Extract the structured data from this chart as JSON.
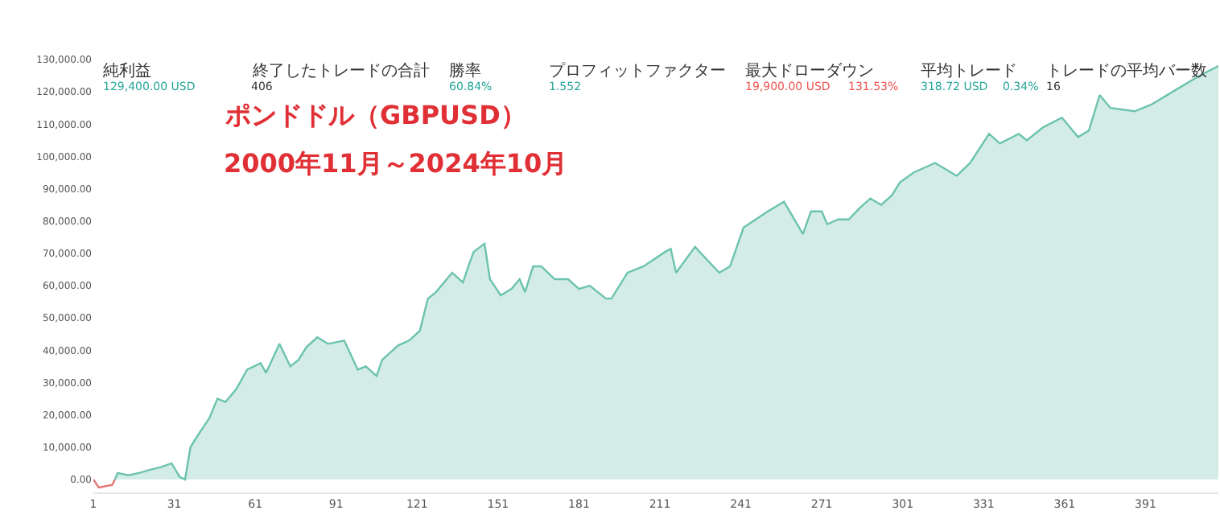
{
  "chart_data": {
    "type": "area",
    "title": "ポンドドル（GBPUSD）",
    "subtitle": "2000年11月～2024年10月",
    "annotations": [
      "純利益",
      "129,400.00 USD",
      "終了したトレードの合計",
      "406",
      "勝率",
      "60.84%",
      "プロフィットファクター",
      "1.552",
      "最大ドローダウン",
      "19,900.00 USD",
      "131.53%",
      "平均トレード",
      "318.72 USD",
      "0.34%",
      "トレードの平均バー数",
      "16"
    ],
    "series": [
      {
        "type": "line",
        "color": "#e57373",
        "x": [
          1,
          3,
          8,
          9
        ],
        "values": [
          0,
          -2500,
          -1700,
          0
        ]
      },
      {
        "color": "#6cc3ad",
        "x": [
          9,
          10,
          14,
          18,
          22,
          26,
          30,
          33,
          35,
          37,
          40,
          44,
          47,
          50,
          54,
          58,
          63,
          65,
          70,
          74,
          77,
          80,
          84,
          88,
          94,
          99,
          102,
          106,
          108,
          114,
          118,
          122,
          125,
          128,
          134,
          138,
          140,
          142,
          146,
          148,
          152,
          156,
          159,
          161,
          164,
          167,
          172,
          177,
          181,
          185,
          191,
          193,
          199,
          205,
          213,
          215,
          217,
          224,
          233,
          237,
          242,
          251,
          257,
          264,
          267,
          271,
          273,
          277,
          281,
          285,
          289,
          293,
          297,
          300,
          305,
          313,
          321,
          326,
          333,
          337,
          344,
          347,
          353,
          360,
          366,
          370,
          374,
          378,
          387,
          393,
          403,
          411,
          418
        ],
        "values": [
          0,
          2000,
          1300,
          2000,
          3000,
          3800,
          5000,
          800,
          0,
          10000,
          14000,
          19000,
          25000,
          24000,
          28000,
          34000,
          36000,
          33000,
          42000,
          35000,
          37000,
          41000,
          44000,
          42000,
          43000,
          34000,
          35000,
          32000,
          37000,
          41500,
          43000,
          46000,
          56000,
          58000,
          64000,
          61000,
          66000,
          70500,
          73000,
          62000,
          57000,
          59000,
          62000,
          58000,
          66000,
          66000,
          62000,
          62000,
          59000,
          60000,
          56000,
          56000,
          64000,
          66000,
          70500,
          71400,
          64000,
          72000,
          64000,
          66000,
          78000,
          83000,
          86000,
          76000,
          83000,
          83000,
          79000,
          80500,
          80500,
          84000,
          87000,
          85000,
          88000,
          92000,
          95000,
          98000,
          94000,
          98000,
          107000,
          104000,
          107000,
          105000,
          109000,
          112000,
          106000,
          108000,
          119000,
          115000,
          114000,
          116000,
          121000,
          125000,
          128000
        ]
      }
    ],
    "xlim": [
      1,
      418
    ],
    "xticks": [
      1,
      31,
      61,
      91,
      121,
      151,
      181,
      211,
      241,
      271,
      301,
      331,
      361,
      391
    ],
    "ylim": [
      -4000,
      130000
    ],
    "yticks": [
      {
        "value": 0,
        "label": "0.00"
      },
      {
        "value": 10000,
        "label": "10,000.00"
      },
      {
        "value": 20000,
        "label": "20,000.00"
      },
      {
        "value": 30000,
        "label": "30,000.00"
      },
      {
        "value": 40000,
        "label": "40,000.00"
      },
      {
        "value": 50000,
        "label": "50,000.00"
      },
      {
        "value": 60000,
        "label": "60,000.00"
      },
      {
        "value": 70000,
        "label": "70,000.00"
      },
      {
        "value": 80000,
        "label": "80,000.00"
      },
      {
        "value": 90000,
        "label": "90,000.00"
      },
      {
        "value": 100000,
        "label": "100,000.00"
      },
      {
        "value": 110000,
        "label": "110,000.00"
      },
      {
        "value": 120000,
        "label": "120,000.00"
      },
      {
        "value": 130000,
        "label": "130,000.00"
      }
    ],
    "tick_labels": true
  }
}
